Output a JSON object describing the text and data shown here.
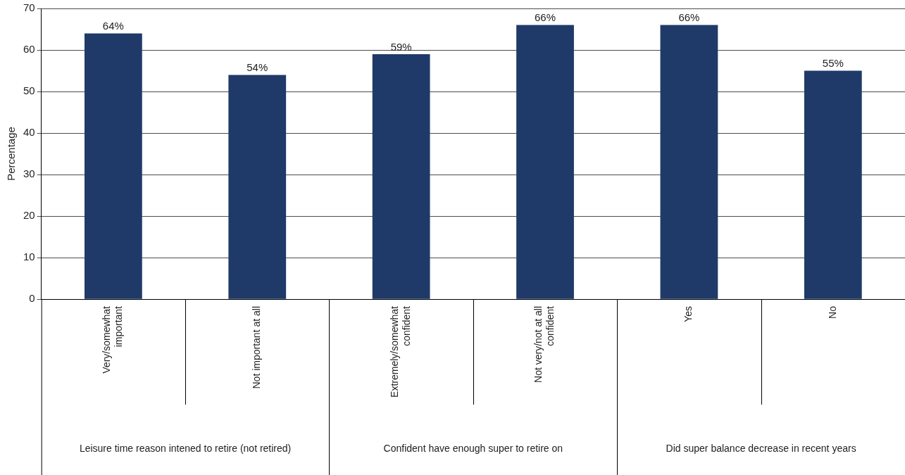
{
  "chart_data": {
    "type": "bar",
    "ylabel": "Percentage",
    "categories": [
      "Very/somewhat important",
      "Not important at all",
      "Extremely/somewhat confident",
      "Not very/not at all confident",
      "Yes",
      "No"
    ],
    "values": [
      64,
      54,
      59,
      66,
      66,
      55
    ],
    "value_labels": [
      "64%",
      "54%",
      "59%",
      "66%",
      "66%",
      "55%"
    ],
    "color": "#1f3a68",
    "ylim": [
      0,
      70
    ],
    "yticks": [
      0,
      10,
      20,
      30,
      40,
      50,
      60,
      70
    ],
    "grid": "y",
    "legend": false,
    "annotations": [
      "Leisure time reason intened to retire (not retired)",
      "Confident have enough super to retire on",
      "Did super balance decrease in recent years"
    ]
  }
}
